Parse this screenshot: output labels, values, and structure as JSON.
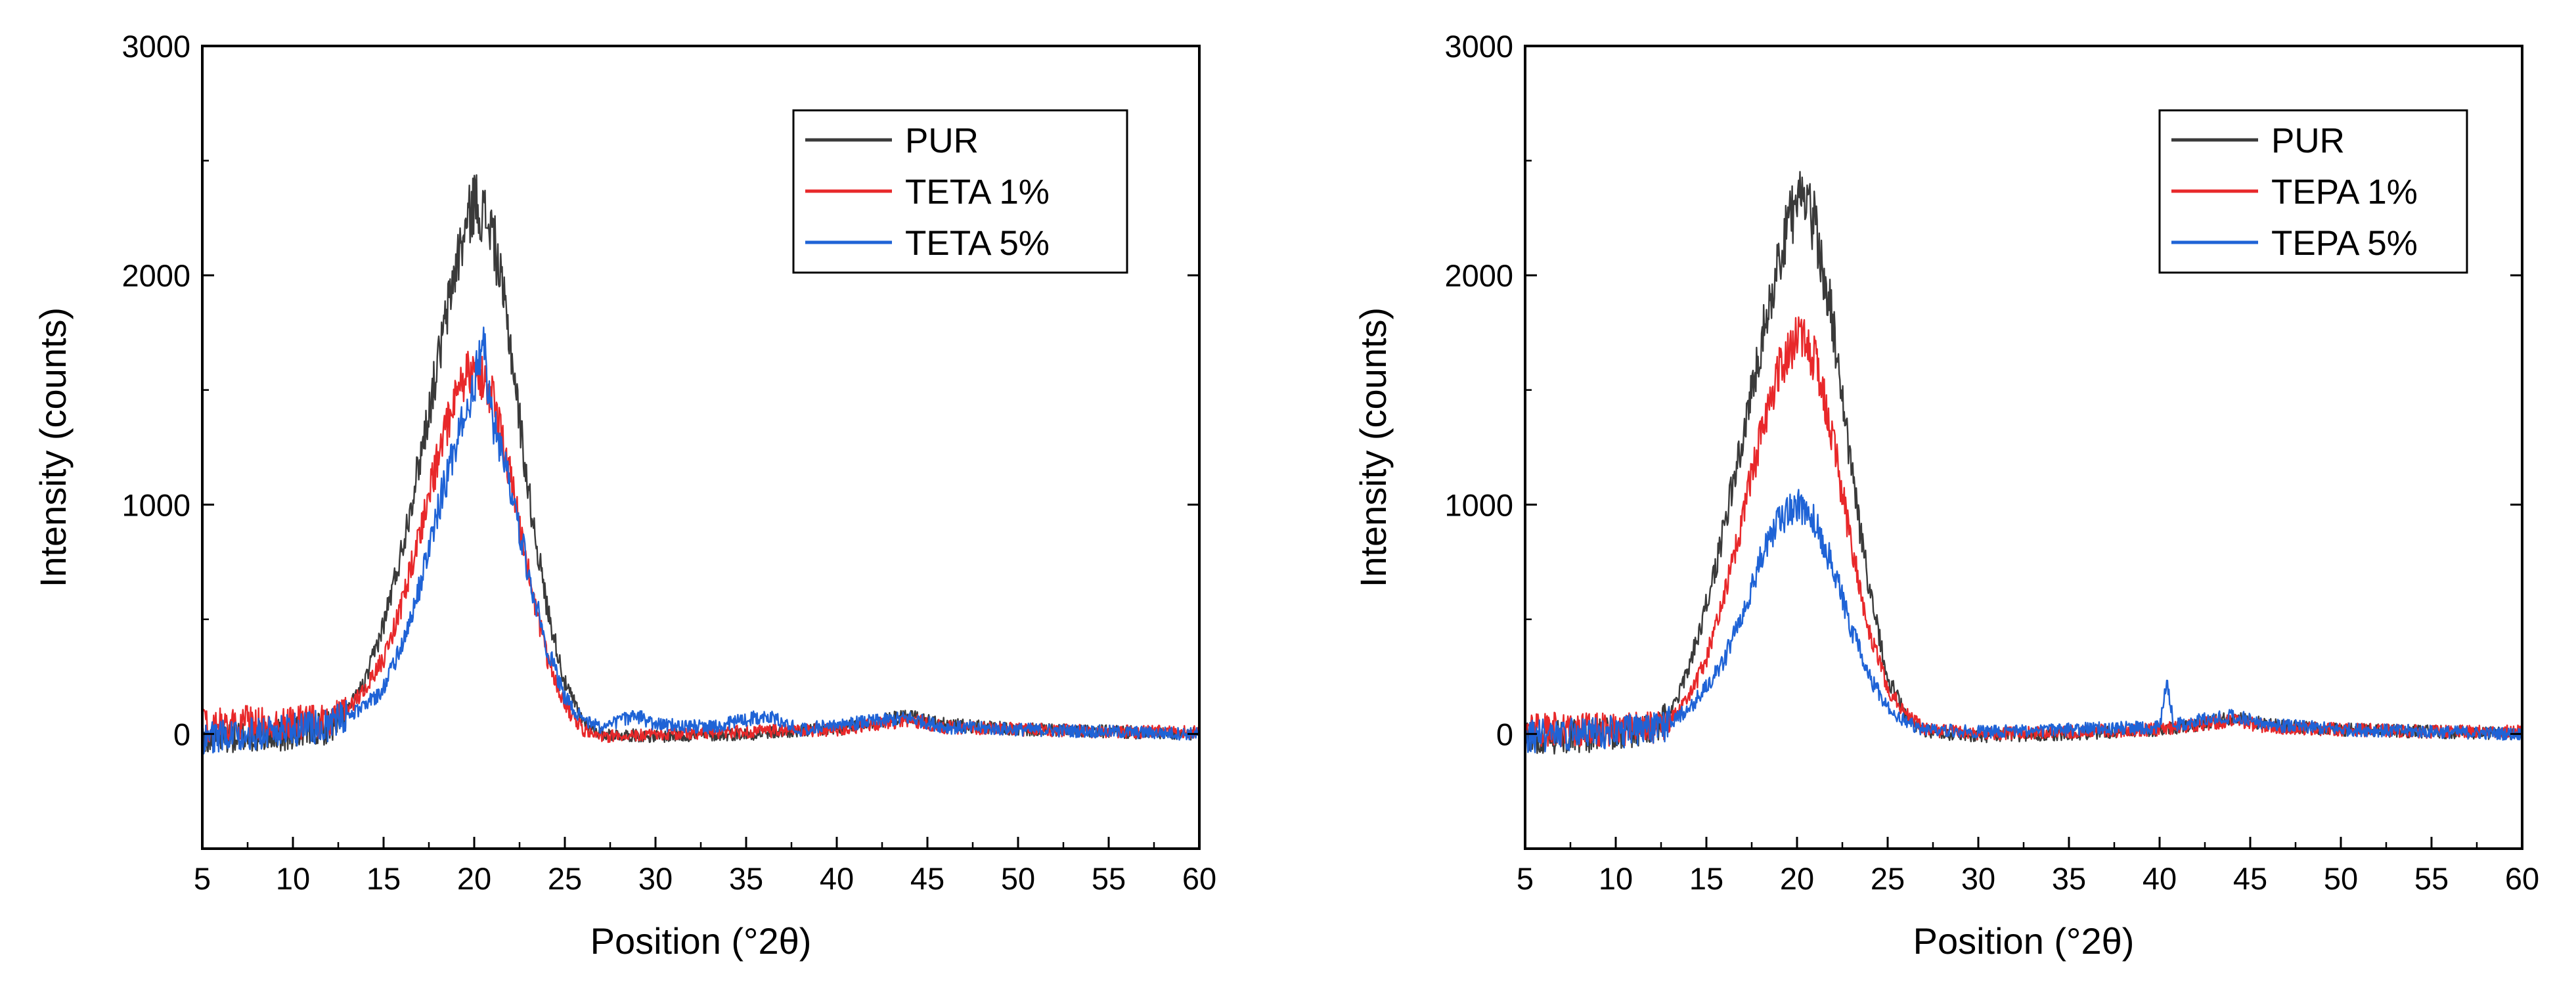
{
  "chart_data": [
    {
      "type": "line",
      "title": "",
      "xlabel": "Position (°2θ)",
      "ylabel": "Intensity (counts)",
      "xlim": [
        5,
        60
      ],
      "ylim": [
        -500,
        3000
      ],
      "x_ticks": [
        5,
        10,
        15,
        20,
        25,
        30,
        35,
        40,
        45,
        50,
        55,
        60
      ],
      "y_ticks": [
        0,
        1000,
        2000,
        3000
      ],
      "grid": false,
      "legend_position": "top-right",
      "series": [
        {
          "name": "PUR",
          "color": "#3a3a3a",
          "points": [
            [
              5,
              -20
            ],
            [
              8,
              -10
            ],
            [
              10,
              0
            ],
            [
              12,
              30
            ],
            [
              13,
              100
            ],
            [
              14,
              230
            ],
            [
              15,
              480
            ],
            [
              16,
              800
            ],
            [
              17,
              1200
            ],
            [
              18,
              1620
            ],
            [
              19,
              2050
            ],
            [
              20,
              2330
            ],
            [
              21,
              2200
            ],
            [
              22,
              1700
            ],
            [
              23,
              1050
            ],
            [
              24,
              560
            ],
            [
              25,
              220
            ],
            [
              26,
              60
            ],
            [
              27,
              0
            ],
            [
              30,
              -10
            ],
            [
              35,
              0
            ],
            [
              40,
              20
            ],
            [
              42,
              50
            ],
            [
              44,
              80
            ],
            [
              46,
              40
            ],
            [
              50,
              20
            ],
            [
              55,
              10
            ],
            [
              60,
              0
            ]
          ]
        },
        {
          "name": "TETA 1%",
          "color": "#e8282a",
          "points": [
            [
              5,
              40
            ],
            [
              8,
              50
            ],
            [
              10,
              50
            ],
            [
              12,
              50
            ],
            [
              13,
              100
            ],
            [
              14,
              200
            ],
            [
              15,
              330
            ],
            [
              16,
              560
            ],
            [
              17,
              880
            ],
            [
              18,
              1200
            ],
            [
              19,
              1480
            ],
            [
              20,
              1620
            ],
            [
              21,
              1460
            ],
            [
              22,
              1120
            ],
            [
              23,
              700
            ],
            [
              24,
              340
            ],
            [
              25,
              120
            ],
            [
              26,
              20
            ],
            [
              27,
              -10
            ],
            [
              30,
              0
            ],
            [
              35,
              10
            ],
            [
              40,
              20
            ],
            [
              44,
              60
            ],
            [
              46,
              30
            ],
            [
              50,
              20
            ],
            [
              55,
              10
            ],
            [
              60,
              10
            ]
          ]
        },
        {
          "name": "TETA 5%",
          "color": "#1f63d6",
          "points": [
            [
              5,
              -20
            ],
            [
              8,
              0
            ],
            [
              10,
              20
            ],
            [
              12,
              40
            ],
            [
              13,
              80
            ],
            [
              14,
              120
            ],
            [
              15,
              200
            ],
            [
              16,
              380
            ],
            [
              17,
              640
            ],
            [
              18,
              980
            ],
            [
              19,
              1260
            ],
            [
              20,
              1520
            ],
            [
              20.5,
              1700
            ],
            [
              21,
              1380
            ],
            [
              22,
              1080
            ],
            [
              23,
              700
            ],
            [
              24,
              380
            ],
            [
              25,
              160
            ],
            [
              26,
              60
            ],
            [
              27,
              30
            ],
            [
              28,
              60
            ],
            [
              29,
              80
            ],
            [
              30,
              40
            ],
            [
              33,
              30
            ],
            [
              36,
              80
            ],
            [
              38,
              20
            ],
            [
              40,
              40
            ],
            [
              44,
              70
            ],
            [
              46,
              30
            ],
            [
              50,
              20
            ],
            [
              55,
              10
            ],
            [
              60,
              0
            ]
          ]
        }
      ]
    },
    {
      "type": "line",
      "title": "",
      "xlabel": "Position (°2θ)",
      "ylabel": "Intensity (counts)",
      "xlim": [
        5,
        60
      ],
      "ylim": [
        -500,
        3000
      ],
      "x_ticks": [
        5,
        10,
        15,
        20,
        25,
        30,
        35,
        40,
        45,
        50,
        55,
        60
      ],
      "y_ticks": [
        0,
        1000,
        2000,
        3000
      ],
      "grid": false,
      "legend_position": "top-right",
      "series": [
        {
          "name": "PUR",
          "color": "#3a3a3a",
          "points": [
            [
              5,
              -20
            ],
            [
              8,
              -10
            ],
            [
              10,
              0
            ],
            [
              12,
              20
            ],
            [
              13,
              80
            ],
            [
              14,
              280
            ],
            [
              15,
              560
            ],
            [
              16,
              900
            ],
            [
              17,
              1300
            ],
            [
              18,
              1700
            ],
            [
              19,
              2080
            ],
            [
              20,
              2330
            ],
            [
              21,
              2230
            ],
            [
              22,
              1780
            ],
            [
              23,
              1150
            ],
            [
              24,
              620
            ],
            [
              25,
              250
            ],
            [
              26,
              80
            ],
            [
              27,
              10
            ],
            [
              30,
              -10
            ],
            [
              35,
              0
            ],
            [
              40,
              20
            ],
            [
              42,
              40
            ],
            [
              44,
              70
            ],
            [
              46,
              40
            ],
            [
              50,
              20
            ],
            [
              55,
              10
            ],
            [
              60,
              0
            ]
          ]
        },
        {
          "name": "TEPA 1%",
          "color": "#e8282a",
          "points": [
            [
              5,
              20
            ],
            [
              8,
              20
            ],
            [
              10,
              20
            ],
            [
              12,
              30
            ],
            [
              13,
              60
            ],
            [
              14,
              150
            ],
            [
              15,
              330
            ],
            [
              16,
              600
            ],
            [
              17,
              950
            ],
            [
              18,
              1300
            ],
            [
              19,
              1600
            ],
            [
              20,
              1740
            ],
            [
              21,
              1640
            ],
            [
              22,
              1280
            ],
            [
              23,
              820
            ],
            [
              24,
              440
            ],
            [
              25,
              200
            ],
            [
              26,
              90
            ],
            [
              27,
              20
            ],
            [
              30,
              0
            ],
            [
              35,
              10
            ],
            [
              40,
              20
            ],
            [
              44,
              60
            ],
            [
              46,
              30
            ],
            [
              50,
              20
            ],
            [
              55,
              10
            ],
            [
              60,
              10
            ]
          ]
        },
        {
          "name": "TEPA 5%",
          "color": "#1f63d6",
          "points": [
            [
              5,
              -10
            ],
            [
              8,
              0
            ],
            [
              10,
              10
            ],
            [
              12,
              20
            ],
            [
              13,
              50
            ],
            [
              14,
              110
            ],
            [
              15,
              200
            ],
            [
              16,
              330
            ],
            [
              17,
              530
            ],
            [
              18,
              760
            ],
            [
              19,
              930
            ],
            [
              20,
              1000
            ],
            [
              21,
              930
            ],
            [
              22,
              720
            ],
            [
              23,
              460
            ],
            [
              24,
              250
            ],
            [
              25,
              110
            ],
            [
              26,
              50
            ],
            [
              27,
              20
            ],
            [
              30,
              10
            ],
            [
              35,
              20
            ],
            [
              40,
              30
            ],
            [
              40.4,
              220
            ],
            [
              40.8,
              40
            ],
            [
              44,
              80
            ],
            [
              46,
              40
            ],
            [
              50,
              20
            ],
            [
              55,
              10
            ],
            [
              60,
              0
            ]
          ]
        }
      ]
    }
  ]
}
